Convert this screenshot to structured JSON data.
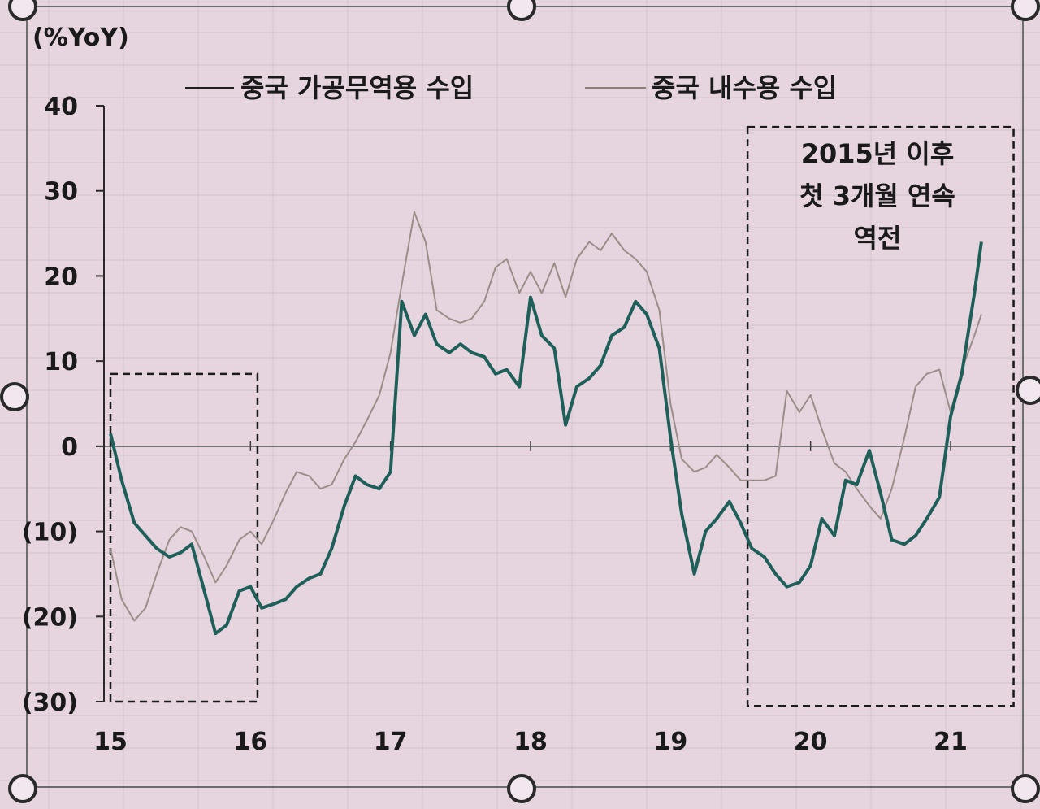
{
  "chart_data": {
    "type": "line",
    "unit_label": "(%YoY)",
    "y_ticks": [
      {
        "value": 40,
        "label": "40"
      },
      {
        "value": 30,
        "label": "30"
      },
      {
        "value": 20,
        "label": "20"
      },
      {
        "value": 10,
        "label": "10"
      },
      {
        "value": 0,
        "label": "0"
      },
      {
        "value": -10,
        "label": "(10)"
      },
      {
        "value": -20,
        "label": "(20)"
      },
      {
        "value": -30,
        "label": "(30)"
      }
    ],
    "x_ticks": [
      {
        "value": 15,
        "label": "15"
      },
      {
        "value": 16,
        "label": "16"
      },
      {
        "value": 17,
        "label": "17"
      },
      {
        "value": 18,
        "label": "18"
      },
      {
        "value": 19,
        "label": "19"
      },
      {
        "value": 20,
        "label": "20"
      },
      {
        "value": 21,
        "label": "21"
      }
    ],
    "ylim": [
      -30,
      40
    ],
    "xlim": [
      15,
      21.35
    ],
    "legend_position": "top",
    "series": [
      {
        "name": "중국 가공무역용 수입",
        "color": "#1f5f5a",
        "points": [
          [
            15.0,
            1.5
          ],
          [
            15.08,
            -4
          ],
          [
            15.17,
            -9
          ],
          [
            15.25,
            -10.5
          ],
          [
            15.33,
            -12
          ],
          [
            15.42,
            -13
          ],
          [
            15.5,
            -12.5
          ],
          [
            15.58,
            -11.5
          ],
          [
            15.67,
            -17
          ],
          [
            15.75,
            -22
          ],
          [
            15.83,
            -21
          ],
          [
            15.92,
            -17
          ],
          [
            16.0,
            -16.5
          ],
          [
            16.08,
            -19
          ],
          [
            16.17,
            -18.5
          ],
          [
            16.25,
            -18
          ],
          [
            16.33,
            -16.5
          ],
          [
            16.42,
            -15.5
          ],
          [
            16.5,
            -15
          ],
          [
            16.58,
            -12
          ],
          [
            16.67,
            -7
          ],
          [
            16.75,
            -3.5
          ],
          [
            16.83,
            -4.5
          ],
          [
            16.92,
            -5
          ],
          [
            17.0,
            -3
          ],
          [
            17.08,
            17
          ],
          [
            17.17,
            13
          ],
          [
            17.25,
            15.5
          ],
          [
            17.33,
            12
          ],
          [
            17.42,
            11
          ],
          [
            17.5,
            12
          ],
          [
            17.58,
            11
          ],
          [
            17.67,
            10.5
          ],
          [
            17.75,
            8.5
          ],
          [
            17.83,
            9
          ],
          [
            17.92,
            7
          ],
          [
            18.0,
            17.5
          ],
          [
            18.08,
            13
          ],
          [
            18.17,
            11.5
          ],
          [
            18.25,
            2.5
          ],
          [
            18.33,
            7
          ],
          [
            18.42,
            8
          ],
          [
            18.5,
            9.5
          ],
          [
            18.58,
            13
          ],
          [
            18.67,
            14
          ],
          [
            18.75,
            17
          ],
          [
            18.83,
            15.5
          ],
          [
            18.92,
            11.5
          ],
          [
            19.0,
            1
          ],
          [
            19.08,
            -8
          ],
          [
            19.17,
            -15
          ],
          [
            19.25,
            -10
          ],
          [
            19.33,
            -8.5
          ],
          [
            19.42,
            -6.5
          ],
          [
            19.5,
            -9
          ],
          [
            19.58,
            -12
          ],
          [
            19.67,
            -13
          ],
          [
            19.75,
            -15
          ],
          [
            19.83,
            -16.5
          ],
          [
            19.92,
            -16
          ],
          [
            20.0,
            -14
          ],
          [
            20.08,
            -8.5
          ],
          [
            20.17,
            -10.5
          ],
          [
            20.25,
            -4
          ],
          [
            20.33,
            -4.5
          ],
          [
            20.42,
            -0.5
          ],
          [
            20.5,
            -5.5
          ],
          [
            20.58,
            -11
          ],
          [
            20.67,
            -11.5
          ],
          [
            20.75,
            -10.5
          ],
          [
            20.83,
            -8.5
          ],
          [
            20.92,
            -6
          ],
          [
            21.0,
            3.5
          ],
          [
            21.08,
            8.5
          ],
          [
            21.17,
            18
          ],
          [
            21.22,
            24
          ]
        ]
      },
      {
        "name": "중국 내수용 수입",
        "color": "#9a8e88",
        "points": [
          [
            15.0,
            -12
          ],
          [
            15.08,
            -18
          ],
          [
            15.17,
            -20.5
          ],
          [
            15.25,
            -19
          ],
          [
            15.33,
            -15
          ],
          [
            15.42,
            -11
          ],
          [
            15.5,
            -9.5
          ],
          [
            15.58,
            -10
          ],
          [
            15.67,
            -13
          ],
          [
            15.75,
            -16
          ],
          [
            15.83,
            -14
          ],
          [
            15.92,
            -11
          ],
          [
            16.0,
            -10
          ],
          [
            16.08,
            -11.5
          ],
          [
            16.17,
            -8.5
          ],
          [
            16.25,
            -5.5
          ],
          [
            16.33,
            -3
          ],
          [
            16.42,
            -3.5
          ],
          [
            16.5,
            -5
          ],
          [
            16.58,
            -4.5
          ],
          [
            16.67,
            -1.5
          ],
          [
            16.75,
            0.5
          ],
          [
            16.83,
            3
          ],
          [
            16.92,
            6
          ],
          [
            17.0,
            11
          ],
          [
            17.08,
            19
          ],
          [
            17.17,
            27.5
          ],
          [
            17.25,
            24
          ],
          [
            17.33,
            16
          ],
          [
            17.42,
            15
          ],
          [
            17.5,
            14.5
          ],
          [
            17.58,
            15
          ],
          [
            17.67,
            17
          ],
          [
            17.75,
            21
          ],
          [
            17.83,
            22
          ],
          [
            17.92,
            18
          ],
          [
            18.0,
            20.5
          ],
          [
            18.08,
            18
          ],
          [
            18.17,
            21.5
          ],
          [
            18.25,
            17.5
          ],
          [
            18.33,
            22
          ],
          [
            18.42,
            24
          ],
          [
            18.5,
            23
          ],
          [
            18.58,
            25
          ],
          [
            18.67,
            23
          ],
          [
            18.75,
            22
          ],
          [
            18.83,
            20.5
          ],
          [
            18.92,
            16
          ],
          [
            19.0,
            5
          ],
          [
            19.08,
            -1.5
          ],
          [
            19.17,
            -3
          ],
          [
            19.25,
            -2.5
          ],
          [
            19.33,
            -1
          ],
          [
            19.42,
            -2.5
          ],
          [
            19.5,
            -4
          ],
          [
            19.58,
            -4
          ],
          [
            19.67,
            -4
          ],
          [
            19.75,
            -3.5
          ],
          [
            19.83,
            6.5
          ],
          [
            19.92,
            4
          ],
          [
            20.0,
            6
          ],
          [
            20.08,
            2
          ],
          [
            20.17,
            -2
          ],
          [
            20.25,
            -3
          ],
          [
            20.33,
            -5
          ],
          [
            20.42,
            -7
          ],
          [
            20.5,
            -8.5
          ],
          [
            20.58,
            -5
          ],
          [
            20.67,
            1
          ],
          [
            20.75,
            7
          ],
          [
            20.83,
            8.5
          ],
          [
            20.92,
            9
          ],
          [
            21.0,
            4
          ],
          [
            21.08,
            9
          ],
          [
            21.17,
            13
          ],
          [
            21.22,
            15.5
          ]
        ]
      }
    ],
    "annotation": {
      "lines": [
        "2015년 이후",
        "첫 3개월 연속",
        "역전"
      ]
    },
    "highlight_boxes": [
      {
        "x_start": 15.0,
        "x_end": 16.05,
        "y_top": 8.5,
        "y_bottom": -30
      },
      {
        "x_start": 19.55,
        "x_end": 21.45,
        "y_top": 37.5,
        "y_bottom": -30.5
      }
    ]
  }
}
